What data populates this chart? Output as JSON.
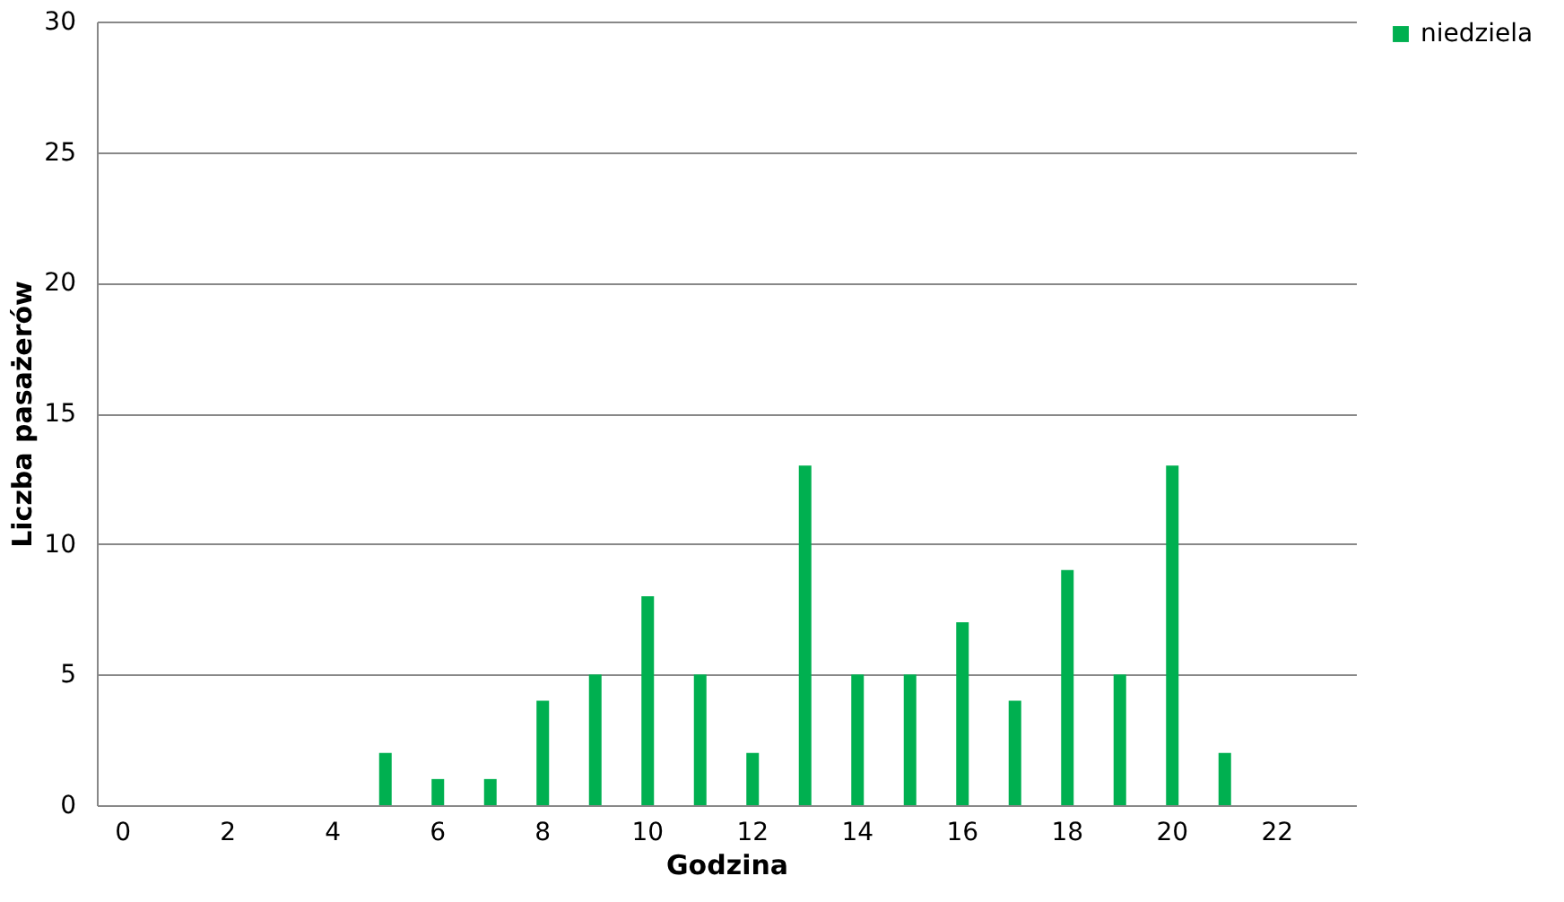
{
  "chart_data": {
    "type": "bar",
    "xlabel": "Godzina",
    "ylabel": "Liczba pasażerów",
    "categories": [
      "0",
      null,
      "2",
      null,
      "4",
      null,
      "6",
      null,
      "8",
      null,
      "10",
      null,
      "12",
      null,
      "14",
      null,
      "16",
      null,
      "18",
      null,
      "20",
      null,
      "22",
      null
    ],
    "series": [
      {
        "name": "niedziela",
        "color": "#00b050",
        "values": [
          0,
          0,
          0,
          0,
          0,
          2,
          1,
          1,
          4,
          5,
          8,
          5,
          2,
          13,
          5,
          5,
          7,
          4,
          9,
          5,
          13,
          2,
          0,
          0
        ]
      }
    ],
    "ylim": [
      0,
      30
    ],
    "yticks": [
      0,
      5,
      10,
      15,
      20,
      25,
      30
    ],
    "grid": "y",
    "legend": "right"
  }
}
